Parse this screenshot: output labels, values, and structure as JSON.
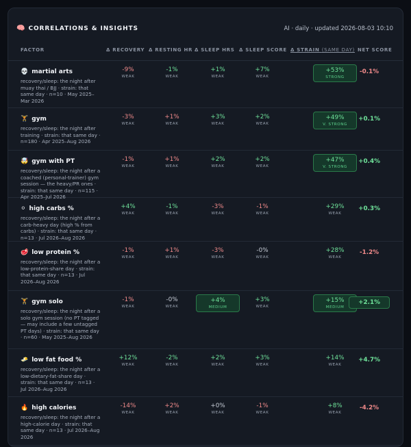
{
  "header": {
    "icon": "brain-icon",
    "title": "CORRELATIONS & INSIGHTS",
    "meta": "AI · daily · updated 2026-08-03 10:10"
  },
  "columns": {
    "factor": "FACTOR",
    "recovery": "Δ RECOVERY",
    "resting_hr": "Δ RESTING HR",
    "sleep_hrs": "Δ SLEEP HRS",
    "sleep_score": "Δ SLEEP SCORE",
    "strain": "Δ STRAIN",
    "strain_sub": "(SAME DAY)",
    "net": "NET SCORE"
  },
  "colors": {
    "positive": "#6fe29a",
    "negative": "#f28b8b",
    "neutral": "#c7cdd7",
    "highlight_bg": "#15382a",
    "highlight_border": "#2b7a4a"
  },
  "rows": [
    {
      "emoji": "💀",
      "icon": "skull-icon",
      "name": "martial arts",
      "desc": "recovery/sleep: the night after muay thai / BJJ · strain: that same day · n=10 · May 2025–Mar 2026",
      "cells": [
        {
          "v": "-9%",
          "s": "WEAK",
          "c": "neg"
        },
        {
          "v": "-1%",
          "s": "WEAK",
          "c": "pos"
        },
        {
          "v": "+1%",
          "s": "WEAK",
          "c": "pos"
        },
        {
          "v": "+7%",
          "s": "WEAK",
          "c": "pos"
        },
        {
          "v": "+53%",
          "s": "STRONG",
          "c": "pos",
          "hl": true
        }
      ],
      "net": {
        "v": "-0.1%",
        "c": "neg"
      }
    },
    {
      "emoji": "🏋",
      "icon": "weightlifter-icon",
      "name": "gym",
      "desc": "recovery/sleep: the night after training · strain: that same day · n=180 · Apr 2025–Aug 2026",
      "cells": [
        {
          "v": "-3%",
          "s": "WEAK",
          "c": "neg"
        },
        {
          "v": "+1%",
          "s": "WEAK",
          "c": "neg"
        },
        {
          "v": "+3%",
          "s": "WEAK",
          "c": "pos"
        },
        {
          "v": "+2%",
          "s": "WEAK",
          "c": "pos"
        },
        {
          "v": "+49%",
          "s": "V. STRONG",
          "c": "pos",
          "hl": true
        }
      ],
      "net": {
        "v": "+0.1%",
        "c": "pos"
      }
    },
    {
      "emoji": "🤯",
      "icon": "exploding-head-icon",
      "name": "gym with PT",
      "desc": "recovery/sleep: the night after a coached (personal-trainer) gym session — the heavy/PR ones · strain: that same day · n=115 · Apr 2025–Jul 2026",
      "cells": [
        {
          "v": "-1%",
          "s": "WEAK",
          "c": "neg"
        },
        {
          "v": "+1%",
          "s": "WEAK",
          "c": "neg"
        },
        {
          "v": "+2%",
          "s": "WEAK",
          "c": "pos"
        },
        {
          "v": "+2%",
          "s": "WEAK",
          "c": "pos"
        },
        {
          "v": "+47%",
          "s": "V. STRONG",
          "c": "pos",
          "hl": true
        }
      ],
      "net": {
        "v": "+0.4%",
        "c": "pos"
      }
    },
    {
      "emoji": "⚪",
      "icon": "rice-ball-icon",
      "name": "high carbs %",
      "desc": "recovery/sleep: the night after a carb-heavy day (high % from carbs) · strain: that same day · n=13 · Jul 2026–Aug 2026",
      "cells": [
        {
          "v": "+4%",
          "s": "WEAK",
          "c": "pos"
        },
        {
          "v": "-1%",
          "s": "WEAK",
          "c": "pos"
        },
        {
          "v": "-3%",
          "s": "WEAK",
          "c": "neg"
        },
        {
          "v": "-1%",
          "s": "WEAK",
          "c": "neg"
        },
        {
          "v": "+29%",
          "s": "WEAK",
          "c": "pos"
        }
      ],
      "net": {
        "v": "+0.3%",
        "c": "pos"
      }
    },
    {
      "emoji": "🥩",
      "icon": "meat-icon",
      "name": "low protein %",
      "desc": "recovery/sleep: the night after a low-protein-share day · strain: that same day · n=13 · Jul 2026–Aug 2026",
      "cells": [
        {
          "v": "-1%",
          "s": "WEAK",
          "c": "neg"
        },
        {
          "v": "+1%",
          "s": "WEAK",
          "c": "neg"
        },
        {
          "v": "-3%",
          "s": "WEAK",
          "c": "neg"
        },
        {
          "v": "-0%",
          "s": "WEAK",
          "c": "neu"
        },
        {
          "v": "+28%",
          "s": "WEAK",
          "c": "pos"
        }
      ],
      "net": {
        "v": "-1.2%",
        "c": "neg"
      }
    },
    {
      "emoji": "🏋",
      "icon": "weightlifter-icon",
      "name": "gym solo",
      "desc": "recovery/sleep: the night after a solo gym session (no PT tagged — may include a few untagged PT days) · strain: that same day · n=60 · May 2025–Aug 2026",
      "cells": [
        {
          "v": "-1%",
          "s": "WEAK",
          "c": "neg"
        },
        {
          "v": "-0%",
          "s": "WEAK",
          "c": "neu"
        },
        {
          "v": "+4%",
          "s": "MEDIUM",
          "c": "pos",
          "hl": true
        },
        {
          "v": "+3%",
          "s": "WEAK",
          "c": "pos"
        },
        {
          "v": "+15%",
          "s": "MEDIUM",
          "c": "pos",
          "hl": true
        }
      ],
      "net": {
        "v": "+2.1%",
        "c": "pos",
        "hl": true
      }
    },
    {
      "emoji": "🧈",
      "icon": "butter-icon",
      "name": "low fat food %",
      "desc": "recovery/sleep: the night after a low-dietary-fat-share day · strain: that same day · n=13 · Jul 2026–Aug 2026",
      "cells": [
        {
          "v": "+12%",
          "s": "WEAK",
          "c": "pos"
        },
        {
          "v": "-2%",
          "s": "WEAK",
          "c": "pos"
        },
        {
          "v": "+2%",
          "s": "WEAK",
          "c": "pos"
        },
        {
          "v": "+3%",
          "s": "WEAK",
          "c": "pos"
        },
        {
          "v": "+14%",
          "s": "WEAK",
          "c": "pos"
        }
      ],
      "net": {
        "v": "+4.7%",
        "c": "pos"
      }
    },
    {
      "emoji": "🔥",
      "icon": "fire-icon",
      "name": "high calories",
      "desc": "recovery/sleep: the night after a high-calorie day · strain: that same day · n=13 · Jul 2026–Aug 2026",
      "cells": [
        {
          "v": "-14%",
          "s": "WEAK",
          "c": "neg"
        },
        {
          "v": "+2%",
          "s": "WEAK",
          "c": "neg"
        },
        {
          "v": "+0%",
          "s": "WEAK",
          "c": "neu"
        },
        {
          "v": "-1%",
          "s": "WEAK",
          "c": "neg"
        },
        {
          "v": "+8%",
          "s": "WEAK",
          "c": "pos"
        }
      ],
      "net": {
        "v": "-4.2%",
        "c": "neg"
      }
    }
  ]
}
